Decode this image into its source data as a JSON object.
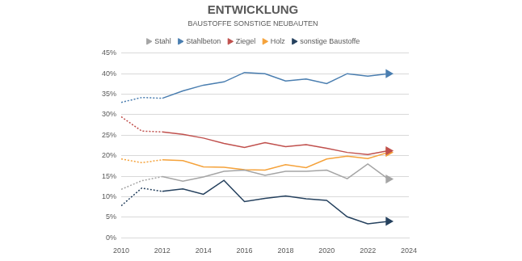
{
  "chart_data": {
    "type": "line",
    "title": "ENTWICKLUNG",
    "subtitle": "BAUSTOFFE SONSTIGE NEUBAUTEN",
    "x": [
      2010,
      2011,
      2012,
      2013,
      2014,
      2015,
      2016,
      2017,
      2018,
      2019,
      2020,
      2021,
      2022,
      2023
    ],
    "series": [
      {
        "name": "Stahl",
        "color": "#a5a5a5",
        "marker": "triangle",
        "values": [
          11.8,
          13.9,
          14.9,
          13.8,
          14.8,
          16.2,
          16.5,
          15.2,
          16.2,
          16.2,
          16.5,
          14.4,
          18.0,
          14.3
        ]
      },
      {
        "name": "Stahlbeton",
        "color": "#4a7eb0",
        "marker": "triangle",
        "values": [
          33.0,
          34.2,
          34.0,
          35.8,
          37.2,
          38.0,
          40.3,
          40.0,
          38.2,
          38.7,
          37.6,
          40.0,
          39.4,
          40.0
        ]
      },
      {
        "name": "Ziegel",
        "color": "#c0504d",
        "marker": "triangle",
        "values": [
          29.5,
          26.0,
          25.8,
          25.2,
          24.3,
          23.0,
          22.0,
          23.2,
          22.2,
          22.7,
          21.8,
          20.8,
          20.3,
          21.2
        ]
      },
      {
        "name": "Holz",
        "color": "#f5a23a",
        "marker": "triangle",
        "values": [
          19.2,
          18.3,
          19.0,
          18.8,
          17.3,
          17.2,
          16.6,
          16.5,
          17.8,
          17.1,
          19.2,
          19.9,
          19.3,
          20.8
        ]
      },
      {
        "name": "sonstige Baustoffe",
        "color": "#25415e",
        "marker": "triangle",
        "values": [
          7.8,
          12.1,
          11.3,
          11.9,
          10.6,
          14.0,
          8.8,
          9.6,
          10.2,
          9.5,
          9.1,
          5.1,
          3.4,
          4.0
        ]
      }
    ],
    "xlim": [
      2010,
      2024
    ],
    "xticks": [
      2010,
      2012,
      2014,
      2016,
      2018,
      2020,
      2022,
      2024
    ],
    "ylim": [
      0,
      45
    ],
    "yticks": [
      {
        "value": 0,
        "label": "0%"
      },
      {
        "value": 5,
        "label": "5%"
      },
      {
        "value": 10,
        "label": "10%"
      },
      {
        "value": 15,
        "label": "15%"
      },
      {
        "value": 20,
        "label": "20%"
      },
      {
        "value": 25,
        "label": "25%"
      },
      {
        "value": 30,
        "label": "30%"
      },
      {
        "value": 35,
        "label": "35%"
      },
      {
        "value": 40,
        "label": "40%"
      },
      {
        "value": 45,
        "label": "45%"
      }
    ],
    "grid": true,
    "legend": "top"
  }
}
